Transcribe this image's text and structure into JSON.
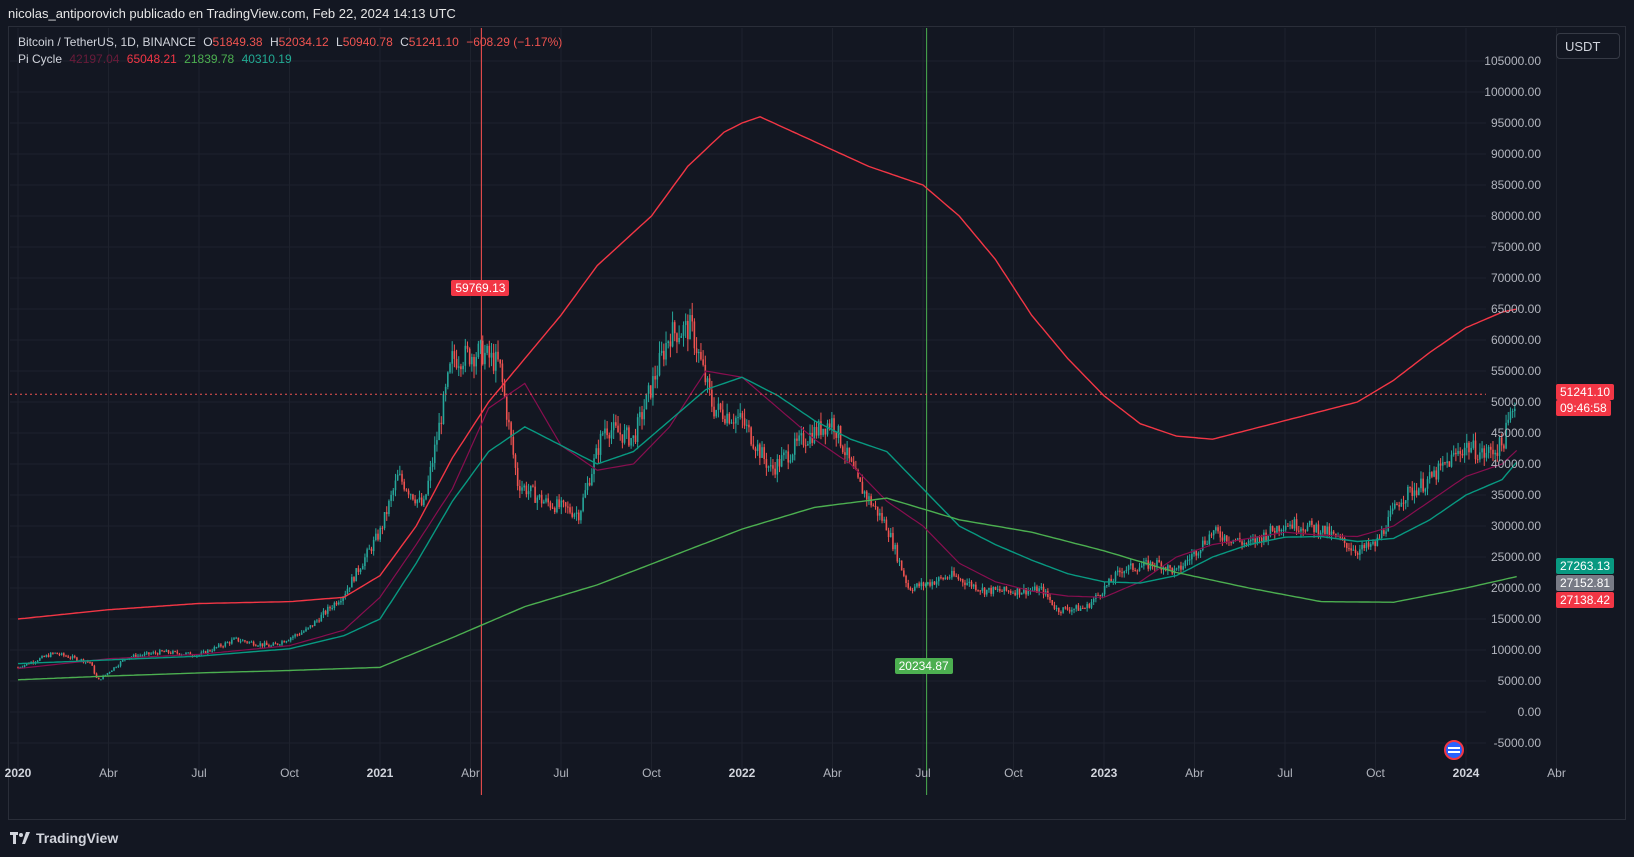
{
  "header": {
    "published": "nicolas_antiporovich publicado en TradingView.com, Feb 22, 2024 14:13 UTC"
  },
  "legend": {
    "symbol": "Bitcoin / TetherUS, 1D, BINANCE",
    "o_label": "O",
    "o_value": "51849.38",
    "h_label": "H",
    "h_value": "52034.12",
    "l_label": "L",
    "l_value": "50940.78",
    "c_label": "C",
    "c_value": "51241.10",
    "change": "−608.29 (−1.17%)",
    "indicator": "Pi Cycle",
    "ind_values": [
      "42197.04",
      "65048.21",
      "21839.78",
      "40310.19"
    ]
  },
  "currency_button": "USDT",
  "brand": "TradingView",
  "colors": {
    "background": "#131722",
    "grid": "#1e222d",
    "up": "#26a69a",
    "down": "#ef5350",
    "pi_red": "#f23645",
    "pi_magenta": "#880e4f",
    "pi_green_light": "#4caf50",
    "pi_green": "#089981",
    "top_line": "#ff5252",
    "bottom_line": "#4caf50"
  },
  "annotations": {
    "top_marker": "59769.13",
    "bottom_marker": "20234.87"
  },
  "price_labels": {
    "last_price": "51241.10",
    "countdown": "09:46:58",
    "green_1": "27263.13",
    "grey": "27152.81",
    "red": "27138.42"
  },
  "chart_data": {
    "type": "line",
    "title": "Bitcoin / TetherUS, 1D, BINANCE",
    "xlabel": "",
    "ylabel": "",
    "ylim": [
      -5000,
      105000
    ],
    "y_ticks": [
      "105000.00",
      "100000.00",
      "95000.00",
      "90000.00",
      "85000.00",
      "80000.00",
      "75000.00",
      "70000.00",
      "65000.00",
      "60000.00",
      "55000.00",
      "50000.00",
      "45000.00",
      "40000.00",
      "35000.00",
      "30000.00",
      "25000.00",
      "20000.00",
      "15000.00",
      "10000.00",
      "5000.00",
      "0.00",
      "-5000.00"
    ],
    "x_ticks": [
      {
        "label": "2020",
        "t": 2020.0,
        "bold": true
      },
      {
        "label": "Abr",
        "t": 2020.25,
        "bold": false
      },
      {
        "label": "Jul",
        "t": 2020.5,
        "bold": false
      },
      {
        "label": "Oct",
        "t": 2020.75,
        "bold": false
      },
      {
        "label": "2021",
        "t": 2021.0,
        "bold": true
      },
      {
        "label": "Abr",
        "t": 2021.25,
        "bold": false
      },
      {
        "label": "Jul",
        "t": 2021.5,
        "bold": false
      },
      {
        "label": "Oct",
        "t": 2021.75,
        "bold": false
      },
      {
        "label": "2022",
        "t": 2022.0,
        "bold": true
      },
      {
        "label": "Abr",
        "t": 2022.25,
        "bold": false
      },
      {
        "label": "Jul",
        "t": 2022.5,
        "bold": false
      },
      {
        "label": "Oct",
        "t": 2022.75,
        "bold": false
      },
      {
        "label": "2023",
        "t": 2023.0,
        "bold": true
      },
      {
        "label": "Abr",
        "t": 2023.25,
        "bold": false
      },
      {
        "label": "Jul",
        "t": 2023.5,
        "bold": false
      },
      {
        "label": "Oct",
        "t": 2023.75,
        "bold": false
      },
      {
        "label": "2024",
        "t": 2024.0,
        "bold": true
      },
      {
        "label": "Abr",
        "t": 2024.25,
        "bold": false
      }
    ],
    "price_series": {
      "name": "BTCUSDT",
      "t": [
        2020.0,
        2020.1,
        2020.2,
        2020.22,
        2020.3,
        2020.4,
        2020.5,
        2020.6,
        2020.7,
        2020.8,
        2020.9,
        2021.0,
        2021.05,
        2021.12,
        2021.2,
        2021.28,
        2021.33,
        2021.38,
        2021.45,
        2021.55,
        2021.62,
        2021.7,
        2021.8,
        2021.86,
        2021.92,
        2022.0,
        2022.08,
        2022.17,
        2022.25,
        2022.32,
        2022.4,
        2022.46,
        2022.5,
        2022.58,
        2022.67,
        2022.75,
        2022.83,
        2022.87,
        2022.95,
        2023.05,
        2023.15,
        2023.2,
        2023.3,
        2023.4,
        2023.5,
        2023.6,
        2023.7,
        2023.75,
        2023.82,
        2023.9,
        2024.0,
        2024.05,
        2024.1,
        2024.14
      ],
      "v": [
        7200,
        9500,
        8000,
        5000,
        8800,
        9700,
        9200,
        11700,
        10600,
        13300,
        19000,
        29000,
        38000,
        33000,
        57000,
        58000,
        56000,
        37000,
        34000,
        32000,
        46000,
        44000,
        61000,
        62000,
        49000,
        47000,
        39000,
        44000,
        47000,
        37000,
        30000,
        20000,
        20500,
        22000,
        19600,
        19500,
        19700,
        16500,
        16800,
        23000,
        24000,
        22500,
        29000,
        27000,
        30500,
        29500,
        26000,
        27000,
        34500,
        37500,
        43000,
        41500,
        43000,
        51241
      ]
    },
    "series": [
      {
        "name": "top_line",
        "t": [
          2020.0,
          2020.25,
          2020.5,
          2020.75,
          2020.9,
          2021.0,
          2021.1,
          2021.2,
          2021.3,
          2021.4,
          2021.5,
          2021.6,
          2021.75,
          2021.85,
          2021.95,
          2022.0,
          2022.05,
          2022.2,
          2022.35,
          2022.5,
          2022.6,
          2022.7,
          2022.8,
          2022.9,
          2023.0,
          2023.1,
          2023.2,
          2023.3,
          2023.4,
          2023.5,
          2023.6,
          2023.7,
          2023.8,
          2023.9,
          2024.0,
          2024.1,
          2024.14
        ],
        "v": [
          15000,
          16500,
          17500,
          17800,
          18500,
          22000,
          30000,
          41000,
          50000,
          57000,
          64000,
          72000,
          80000,
          88000,
          93500,
          95000,
          96000,
          92000,
          88000,
          85000,
          80000,
          73000,
          64000,
          57000,
          51000,
          46500,
          44500,
          44000,
          45500,
          47000,
          48500,
          50000,
          53500,
          58000,
          62000,
          64500,
          65000
        ]
      },
      {
        "name": "pi_short",
        "t": [
          2020.0,
          2020.25,
          2020.5,
          2020.75,
          2020.9,
          2021.0,
          2021.1,
          2021.2,
          2021.3,
          2021.4,
          2021.5,
          2021.6,
          2021.7,
          2021.8,
          2021.9,
          2022.0,
          2022.1,
          2022.2,
          2022.3,
          2022.4,
          2022.5,
          2022.6,
          2022.7,
          2022.8,
          2022.9,
          2023.0,
          2023.1,
          2023.2,
          2023.3,
          2023.4,
          2023.5,
          2023.6,
          2023.7,
          2023.8,
          2023.9,
          2024.0,
          2024.1,
          2024.14
        ],
        "v": [
          7000,
          8600,
          9300,
          10700,
          13200,
          18500,
          27000,
          36000,
          49000,
          53000,
          43000,
          39000,
          40000,
          46000,
          55000,
          54000,
          49000,
          44000,
          40000,
          34000,
          30000,
          24000,
          21000,
          19500,
          18700,
          18500,
          21000,
          25000,
          27000,
          28000,
          29000,
          28500,
          28300,
          30000,
          34000,
          38000,
          40000,
          42197
        ]
      },
      {
        "name": "pi_long",
        "t": [
          2020.0,
          2020.25,
          2020.5,
          2020.75,
          2020.9,
          2021.0,
          2021.1,
          2021.2,
          2021.3,
          2021.4,
          2021.5,
          2021.6,
          2021.7,
          2021.8,
          2021.9,
          2022.0,
          2022.1,
          2022.2,
          2022.3,
          2022.4,
          2022.5,
          2022.6,
          2022.7,
          2022.8,
          2022.9,
          2023.0,
          2023.1,
          2023.2,
          2023.3,
          2023.4,
          2023.5,
          2023.6,
          2023.7,
          2023.8,
          2023.9,
          2024.0,
          2024.1,
          2024.14
        ],
        "v": [
          7800,
          8400,
          9000,
          10200,
          12300,
          15000,
          24000,
          34000,
          42000,
          46000,
          43000,
          40000,
          42000,
          47000,
          52000,
          54000,
          51000,
          47000,
          44000,
          42000,
          36000,
          30000,
          27000,
          24500,
          22300,
          21000,
          20800,
          22000,
          25000,
          27000,
          28200,
          28300,
          27500,
          28000,
          31000,
          35000,
          37500,
          40310
        ]
      },
      {
        "name": "bottom_line",
        "t": [
          2020.0,
          2020.25,
          2020.5,
          2020.75,
          2021.0,
          2021.2,
          2021.4,
          2021.6,
          2021.8,
          2022.0,
          2022.2,
          2022.4,
          2022.6,
          2022.8,
          2023.0,
          2023.2,
          2023.4,
          2023.6,
          2023.8,
          2024.0,
          2024.14
        ],
        "v": [
          5200,
          5800,
          6300,
          6700,
          7200,
          12000,
          17000,
          20500,
          25000,
          29500,
          33000,
          34500,
          31000,
          29000,
          26000,
          22500,
          20000,
          17800,
          17700,
          20000,
          21840
        ]
      }
    ],
    "markers": [
      {
        "t": 2021.28,
        "v": 59769.13,
        "type": "top"
      },
      {
        "t": 2022.51,
        "v": 20234.87,
        "type": "bottom"
      }
    ]
  }
}
